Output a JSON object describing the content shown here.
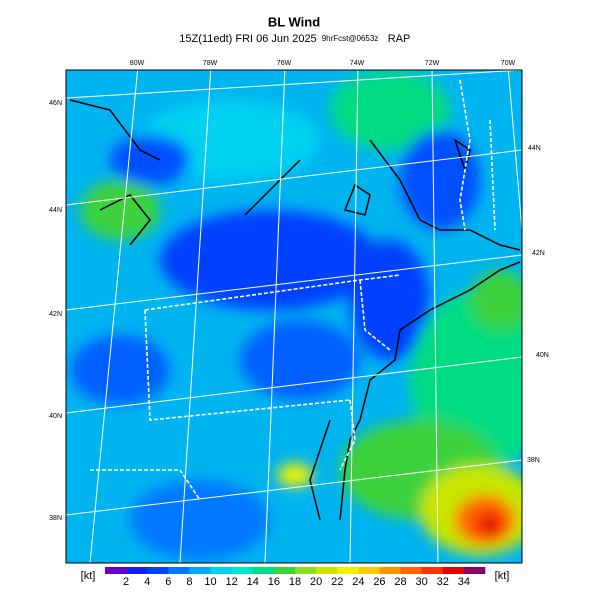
{
  "header": {
    "title": "BL Wind",
    "valid": "15Z(11edt) FRI 06 Jun 2025",
    "forecast": "9hrFcst@0653z",
    "model": "RAP"
  },
  "map": {
    "lon_labels": [
      "80W",
      "78W",
      "76W",
      "74W",
      "72W",
      "70W"
    ],
    "lat_labels_left": [
      "46N",
      "44N",
      "42N",
      "40N",
      "38N"
    ],
    "lat_labels_right": [
      "44N",
      "42N",
      "40N",
      "38N"
    ]
  },
  "colorbar": {
    "unit_left": "[kt]",
    "unit_right": "[kt]",
    "ticks": [
      2,
      4,
      6,
      8,
      10,
      12,
      14,
      16,
      18,
      20,
      22,
      24,
      26,
      28,
      30,
      32,
      34
    ],
    "colors": [
      "#6a00c8",
      "#1a1aff",
      "#0040ff",
      "#0078ff",
      "#00a8ff",
      "#00d2f0",
      "#00e6c8",
      "#00dc82",
      "#3cd23c",
      "#8cdc28",
      "#c8e600",
      "#f0f000",
      "#ffc800",
      "#ff9600",
      "#ff6400",
      "#ff3200",
      "#e60000",
      "#8c0064"
    ]
  }
}
